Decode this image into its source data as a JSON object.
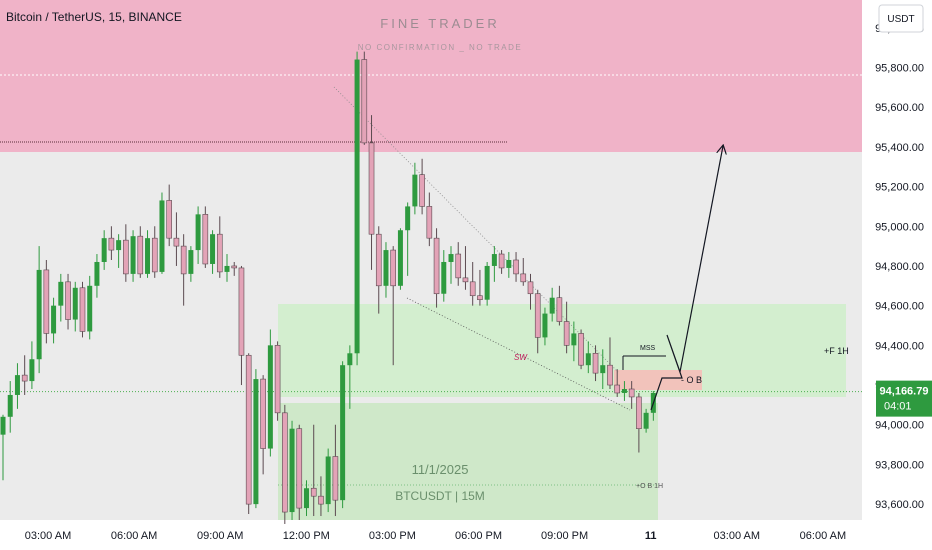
{
  "header": {
    "symbol_title": "Bitcoin / TetherUS, 15, BINANCE",
    "watermark_title": "FINE TRADER",
    "watermark_subtitle": "NO CONFIRMATION _ NO TRADE",
    "currency_button": "USDT"
  },
  "annotations": {
    "mss": "MSS",
    "sw": "SW",
    "ob": "- O B",
    "f1h": "+F 1H",
    "ob1h": "+O B 1H",
    "date_text": "11/1/2025",
    "pair_text": "BTCUSDT | 15M"
  },
  "price_badge": {
    "price": "94,166.79",
    "countdown": "04:01"
  },
  "colors": {
    "bull": "#2e9a3f",
    "bear": "#e3a3b7",
    "supply_zone": "#f0b3c8",
    "demand_zone": "#d3eecf",
    "ob_zone": "#f2c3bb",
    "background": "#ebebeb",
    "price_line": "#4caf50"
  },
  "chart_data": {
    "type": "candlestick",
    "y_axis_ticks": [
      "93,600.00",
      "93,800.00",
      "94,000.00",
      "94,200.00",
      "94,400.00",
      "94,600.00",
      "94,800.00",
      "95,000.00",
      "95,200.00",
      "95,400.00",
      "95,600.00",
      "95,800.00",
      "96,000.00"
    ],
    "x_axis_ticks": [
      "03:00 AM",
      "06:00 AM",
      "09:00 AM",
      "12:00 PM",
      "03:00 PM",
      "06:00 PM",
      "09:00 PM",
      "11",
      "03:00 AM",
      "06:00 AM"
    ],
    "ylim": [
      93520,
      96140
    ],
    "current_price": 94166.79,
    "candles": [
      {
        "o": 93950,
        "h": 94050,
        "l": 93720,
        "c": 94040
      },
      {
        "o": 94040,
        "h": 94220,
        "l": 93960,
        "c": 94150
      },
      {
        "o": 94150,
        "h": 94310,
        "l": 94080,
        "c": 94250
      },
      {
        "o": 94250,
        "h": 94350,
        "l": 94150,
        "c": 94220
      },
      {
        "o": 94220,
        "h": 94420,
        "l": 94180,
        "c": 94330
      },
      {
        "o": 94330,
        "h": 94900,
        "l": 94260,
        "c": 94780
      },
      {
        "o": 94780,
        "h": 94830,
        "l": 94410,
        "c": 94460
      },
      {
        "o": 94460,
        "h": 94640,
        "l": 94410,
        "c": 94600
      },
      {
        "o": 94600,
        "h": 94760,
        "l": 94520,
        "c": 94720
      },
      {
        "o": 94720,
        "h": 94760,
        "l": 94480,
        "c": 94530
      },
      {
        "o": 94530,
        "h": 94720,
        "l": 94470,
        "c": 94690
      },
      {
        "o": 94690,
        "h": 94720,
        "l": 94440,
        "c": 94470
      },
      {
        "o": 94470,
        "h": 94750,
        "l": 94430,
        "c": 94700
      },
      {
        "o": 94700,
        "h": 94860,
        "l": 94640,
        "c": 94820
      },
      {
        "o": 94820,
        "h": 94980,
        "l": 94780,
        "c": 94940
      },
      {
        "o": 94940,
        "h": 95000,
        "l": 94830,
        "c": 94880
      },
      {
        "o": 94880,
        "h": 94960,
        "l": 94790,
        "c": 94930
      },
      {
        "o": 94930,
        "h": 95010,
        "l": 94720,
        "c": 94760
      },
      {
        "o": 94760,
        "h": 94980,
        "l": 94720,
        "c": 94950
      },
      {
        "o": 94950,
        "h": 95000,
        "l": 94740,
        "c": 94760
      },
      {
        "o": 94760,
        "h": 94980,
        "l": 94740,
        "c": 94940
      },
      {
        "o": 94940,
        "h": 95000,
        "l": 94740,
        "c": 94770
      },
      {
        "o": 94770,
        "h": 95170,
        "l": 94760,
        "c": 95130
      },
      {
        "o": 95130,
        "h": 95210,
        "l": 94900,
        "c": 94940
      },
      {
        "o": 94940,
        "h": 95070,
        "l": 94800,
        "c": 94900
      },
      {
        "o": 94900,
        "h": 94960,
        "l": 94600,
        "c": 94760
      },
      {
        "o": 94760,
        "h": 94900,
        "l": 94720,
        "c": 94880
      },
      {
        "o": 94880,
        "h": 95100,
        "l": 94810,
        "c": 95060
      },
      {
        "o": 95060,
        "h": 95100,
        "l": 94790,
        "c": 94810
      },
      {
        "o": 94810,
        "h": 94980,
        "l": 94760,
        "c": 94960
      },
      {
        "o": 94960,
        "h": 95050,
        "l": 94740,
        "c": 94770
      },
      {
        "o": 94770,
        "h": 94860,
        "l": 94720,
        "c": 94800
      },
      {
        "o": 94800,
        "h": 94820,
        "l": 94750,
        "c": 94790
      },
      {
        "o": 94790,
        "h": 94800,
        "l": 94200,
        "c": 94350
      },
      {
        "o": 94350,
        "h": 94360,
        "l": 93550,
        "c": 93600
      },
      {
        "o": 93600,
        "h": 94280,
        "l": 93580,
        "c": 94230
      },
      {
        "o": 94230,
        "h": 94250,
        "l": 93750,
        "c": 93880
      },
      {
        "o": 93880,
        "h": 94480,
        "l": 93840,
        "c": 94400
      },
      {
        "o": 94400,
        "h": 94420,
        "l": 94020,
        "c": 94060
      },
      {
        "o": 94060,
        "h": 94100,
        "l": 93500,
        "c": 93560
      },
      {
        "o": 93560,
        "h": 94020,
        "l": 93520,
        "c": 93980
      },
      {
        "o": 93980,
        "h": 94000,
        "l": 93520,
        "c": 93580
      },
      {
        "o": 93580,
        "h": 93720,
        "l": 93540,
        "c": 93680
      },
      {
        "o": 93680,
        "h": 94000,
        "l": 93540,
        "c": 93640
      },
      {
        "o": 93640,
        "h": 93740,
        "l": 93540,
        "c": 93600
      },
      {
        "o": 93600,
        "h": 93880,
        "l": 93560,
        "c": 93840
      },
      {
        "o": 93840,
        "h": 94000,
        "l": 93540,
        "c": 93620
      },
      {
        "o": 93620,
        "h": 94320,
        "l": 93580,
        "c": 94300
      },
      {
        "o": 94300,
        "h": 94400,
        "l": 94080,
        "c": 94360
      },
      {
        "o": 94360,
        "h": 95880,
        "l": 94300,
        "c": 95840
      },
      {
        "o": 95840,
        "h": 95880,
        "l": 95410,
        "c": 95420
      },
      {
        "o": 95420,
        "h": 95560,
        "l": 94780,
        "c": 94960
      },
      {
        "o": 94960,
        "h": 95000,
        "l": 94560,
        "c": 94700
      },
      {
        "o": 94700,
        "h": 94920,
        "l": 94640,
        "c": 94880
      },
      {
        "o": 94880,
        "h": 94900,
        "l": 94300,
        "c": 94700
      },
      {
        "o": 94700,
        "h": 94990,
        "l": 94680,
        "c": 94980
      },
      {
        "o": 94980,
        "h": 95120,
        "l": 94750,
        "c": 95100
      },
      {
        "o": 95100,
        "h": 95320,
        "l": 95060,
        "c": 95260
      },
      {
        "o": 95260,
        "h": 95340,
        "l": 95060,
        "c": 95100
      },
      {
        "o": 95100,
        "h": 95170,
        "l": 94900,
        "c": 94940
      },
      {
        "o": 94940,
        "h": 94990,
        "l": 94590,
        "c": 94660
      },
      {
        "o": 94660,
        "h": 94880,
        "l": 94620,
        "c": 94820
      },
      {
        "o": 94820,
        "h": 94900,
        "l": 94710,
        "c": 94860
      },
      {
        "o": 94860,
        "h": 94920,
        "l": 94700,
        "c": 94740
      },
      {
        "o": 94740,
        "h": 94900,
        "l": 94680,
        "c": 94720
      },
      {
        "o": 94720,
        "h": 94820,
        "l": 94600,
        "c": 94650
      },
      {
        "o": 94650,
        "h": 94780,
        "l": 94600,
        "c": 94630
      },
      {
        "o": 94630,
        "h": 94820,
        "l": 94600,
        "c": 94800
      },
      {
        "o": 94800,
        "h": 94900,
        "l": 94720,
        "c": 94860
      },
      {
        "o": 94860,
        "h": 94880,
        "l": 94760,
        "c": 94790
      },
      {
        "o": 94790,
        "h": 94870,
        "l": 94740,
        "c": 94830
      },
      {
        "o": 94830,
        "h": 94870,
        "l": 94720,
        "c": 94760
      },
      {
        "o": 94760,
        "h": 94840,
        "l": 94700,
        "c": 94720
      },
      {
        "o": 94720,
        "h": 94760,
        "l": 94580,
        "c": 94660
      },
      {
        "o": 94660,
        "h": 94680,
        "l": 94360,
        "c": 94440
      },
      {
        "o": 94440,
        "h": 94590,
        "l": 94400,
        "c": 94560
      },
      {
        "o": 94560,
        "h": 94690,
        "l": 94520,
        "c": 94640
      },
      {
        "o": 94640,
        "h": 94700,
        "l": 94500,
        "c": 94520
      },
      {
        "o": 94520,
        "h": 94620,
        "l": 94360,
        "c": 94400
      },
      {
        "o": 94400,
        "h": 94520,
        "l": 94320,
        "c": 94460
      },
      {
        "o": 94460,
        "h": 94480,
        "l": 94280,
        "c": 94300
      },
      {
        "o": 94300,
        "h": 94420,
        "l": 94260,
        "c": 94360
      },
      {
        "o": 94360,
        "h": 94400,
        "l": 94220,
        "c": 94260
      },
      {
        "o": 94260,
        "h": 94380,
        "l": 94180,
        "c": 94300
      },
      {
        "o": 94300,
        "h": 94440,
        "l": 94180,
        "c": 94200
      },
      {
        "o": 94200,
        "h": 94280,
        "l": 94140,
        "c": 94160
      },
      {
        "o": 94160,
        "h": 94220,
        "l": 94120,
        "c": 94180
      },
      {
        "o": 94180,
        "h": 94220,
        "l": 94080,
        "c": 94140
      },
      {
        "o": 94140,
        "h": 94160,
        "l": 93860,
        "c": 93980
      },
      {
        "o": 93980,
        "h": 94080,
        "l": 93960,
        "c": 94060
      },
      {
        "o": 94060,
        "h": 94170,
        "l": 94020,
        "c": 94160
      }
    ]
  }
}
